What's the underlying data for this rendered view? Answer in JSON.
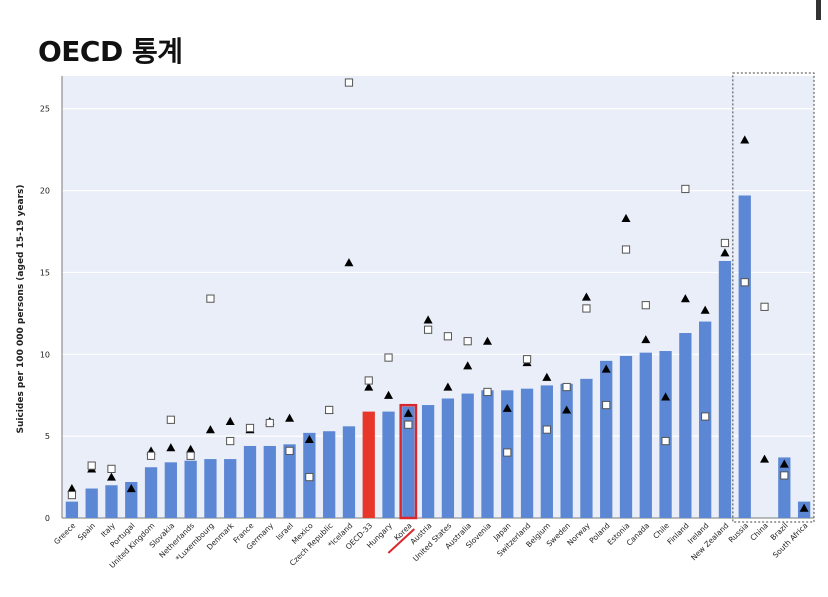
{
  "page": {
    "title": "OECD 통계"
  },
  "colors": {
    "bar": "#5b87d4",
    "highlight_fill": "#e8372a",
    "highlight_outline": "#d8282e",
    "plot_bg": "#e9eef8",
    "grid": "#ffffff",
    "marker": "#000000"
  },
  "chart_data": {
    "type": "bar",
    "title": "",
    "xlabel": "",
    "ylabel": "Suicides per 100 000 persons (aged 15-19 years)",
    "ylim": [
      0,
      27
    ],
    "yticks": [
      0,
      5,
      10,
      15,
      20,
      25
    ],
    "grid": true,
    "legend": "none",
    "categories": [
      "Greece",
      "Spain",
      "Italy",
      "Portugal",
      "United Kingdom",
      "Slovakia",
      "Netherlands",
      "*Luxembourg",
      "Denmark",
      "France",
      "Germany",
      "Israel",
      "Mexico",
      "Czech Republic",
      "*Iceland",
      "OECD-33",
      "Hungary",
      "Korea",
      "Austria",
      "United States",
      "Australia",
      "Slovenia",
      "Japan",
      "Switzerland",
      "Belgium",
      "Sweden",
      "Norway",
      "Poland",
      "Estonia",
      "Canada",
      "Chile",
      "Finland",
      "Ireland",
      "New Zealand",
      "Russia",
      "China",
      "Brazil",
      "South Africa"
    ],
    "series": [
      {
        "values": [
          1.0,
          1.8,
          2.0,
          2.2,
          3.1,
          3.4,
          3.5,
          3.6,
          3.6,
          4.4,
          4.4,
          4.5,
          5.2,
          5.3,
          5.6,
          6.5,
          6.5,
          6.8,
          6.9,
          7.3,
          7.6,
          7.8,
          7.8,
          7.9,
          8.1,
          8.2,
          8.5,
          9.6,
          9.9,
          10.1,
          10.2,
          11.3,
          12.0,
          15.7,
          19.7,
          null,
          3.7,
          1.0
        ]
      },
      {
        "values": [
          1.8,
          3.0,
          2.5,
          1.8,
          4.1,
          4.3,
          4.2,
          5.4,
          5.9,
          5.4,
          5.9,
          6.1,
          4.8,
          6.6,
          15.6,
          8.0,
          7.5,
          6.4,
          12.1,
          8.0,
          9.3,
          10.8,
          6.7,
          9.5,
          8.6,
          6.6,
          13.5,
          9.1,
          18.3,
          10.9,
          7.4,
          13.4,
          12.7,
          16.2,
          23.1,
          3.6,
          3.3,
          0.6
        ]
      },
      {
        "values": [
          1.4,
          3.2,
          3.0,
          null,
          3.8,
          6.0,
          3.8,
          13.4,
          4.7,
          5.5,
          5.8,
          4.1,
          2.5,
          6.6,
          26.6,
          8.4,
          9.8,
          5.7,
          11.5,
          11.1,
          10.8,
          7.7,
          4.0,
          9.7,
          5.4,
          8.0,
          12.8,
          6.9,
          16.4,
          13.0,
          4.7,
          20.1,
          6.2,
          16.8,
          14.4,
          12.9,
          2.6,
          null
        ]
      }
    ],
    "highlight": {
      "filled": "OECD-33",
      "outlined": "Korea",
      "underlined": "Korea"
    },
    "separated_group": [
      "Russia",
      "China",
      "Brazil",
      "South Africa"
    ]
  }
}
